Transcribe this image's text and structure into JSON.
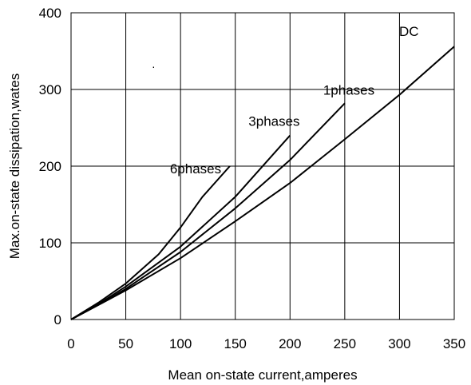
{
  "chart_data": {
    "type": "line",
    "xlabel": "Mean on-state current,amperes",
    "ylabel": "Max.on-state dissipation,wates",
    "xlim": [
      0,
      350
    ],
    "ylim": [
      0,
      400
    ],
    "xticks": [
      "0",
      "50",
      "100",
      "150",
      "200",
      "250",
      "300",
      "350"
    ],
    "yticks": [
      "0",
      "100",
      "200",
      "300",
      "400"
    ],
    "grid": true,
    "colors": {
      "line": "#000000",
      "grid": "#000000"
    },
    "series": [
      {
        "name": "6phases",
        "x": [
          0,
          25,
          50,
          80,
          100,
          120,
          145
        ],
        "y": [
          0,
          22,
          47,
          85,
          120,
          160,
          200
        ]
      },
      {
        "name": "3phases",
        "x": [
          0,
          25,
          50,
          100,
          150,
          200
        ],
        "y": [
          0,
          20,
          43,
          95,
          160,
          240
        ]
      },
      {
        "name": "1phases",
        "x": [
          0,
          25,
          50,
          100,
          150,
          200,
          250
        ],
        "y": [
          0,
          19,
          40,
          88,
          145,
          208,
          282
        ]
      },
      {
        "name": "DC",
        "x": [
          0,
          25,
          50,
          100,
          150,
          200,
          250,
          300,
          350
        ],
        "y": [
          0,
          19,
          38,
          80,
          128,
          178,
          235,
          293,
          356
        ]
      }
    ]
  }
}
